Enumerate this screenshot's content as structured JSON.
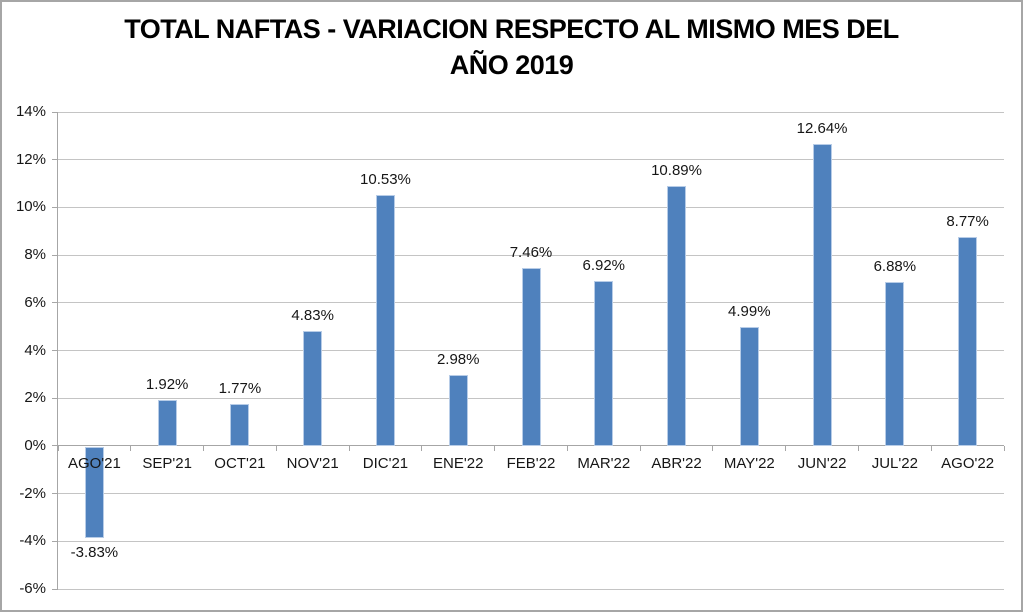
{
  "chart_data": {
    "type": "bar",
    "title": "TOTAL NAFTAS - VARIACION RESPECTO AL MISMO MES DEL AÑO 2019",
    "title_lines": [
      "TOTAL NAFTAS - VARIACION RESPECTO AL MISMO MES DEL",
      "AÑO 2019"
    ],
    "categories": [
      "AGO'21",
      "SEP'21",
      "OCT'21",
      "NOV'21",
      "DIC'21",
      "ENE'22",
      "FEB'22",
      "MAR'22",
      "ABR'22",
      "MAY'22",
      "JUN'22",
      "JUL'22",
      "AGO'22"
    ],
    "values": [
      -3.83,
      1.92,
      1.77,
      4.83,
      10.53,
      2.98,
      7.46,
      6.92,
      10.89,
      4.99,
      12.64,
      6.88,
      8.77
    ],
    "data_labels": [
      "-3.83%",
      "1.92%",
      "1.77%",
      "4.83%",
      "10.53%",
      "2.98%",
      "7.46%",
      "6.92%",
      "10.89%",
      "4.99%",
      "12.64%",
      "6.88%",
      "8.77%"
    ],
    "xlabel": "",
    "ylabel": "",
    "ylim": [
      -6,
      14
    ],
    "ytick_step": 2,
    "ytick_labels": [
      "14%",
      "12%",
      "10%",
      "8%",
      "6%",
      "4%",
      "2%",
      "0%",
      "-2%",
      "-4%",
      "-6%"
    ],
    "grid": true,
    "legend": "none",
    "colors": {
      "bar_fill": "#4F81BD",
      "bar_border": "#B7CCE7",
      "gridline": "#C4C4C4",
      "axis_line": "#A6A6A6",
      "tick": "#A6A6A6",
      "label_text": "#161616",
      "title_text": "#000000",
      "chart_border": "#A6A6A6",
      "background": "#FFFFFF"
    }
  }
}
